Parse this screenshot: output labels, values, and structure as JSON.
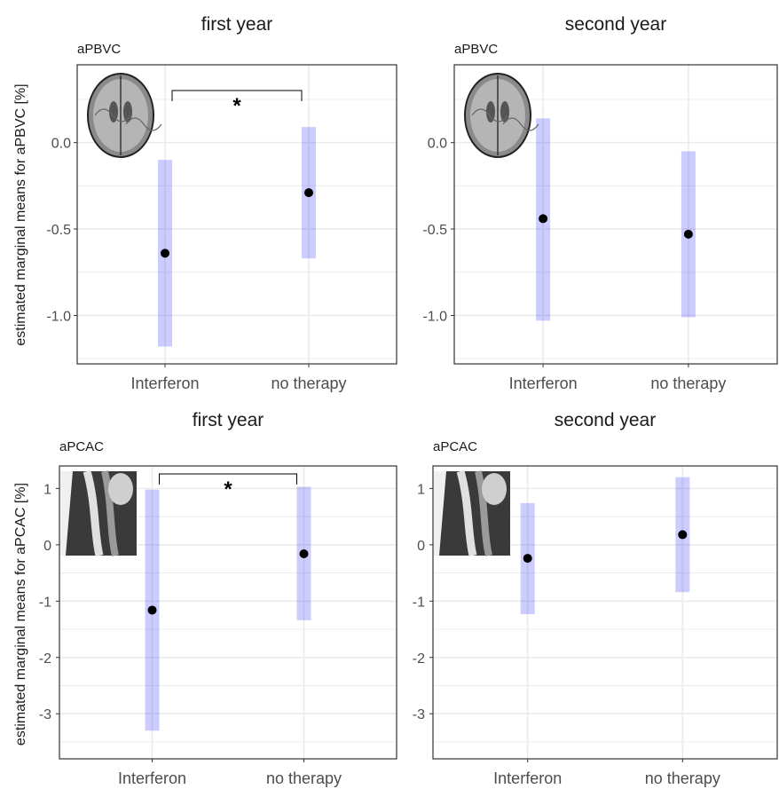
{
  "ylabels": {
    "top": "estimated marginal means for aPBVC [%]",
    "bottom": "estimated marginal means for aPCAC [%]"
  },
  "chart_data": [
    {
      "type": "scatter",
      "title": "first year",
      "subtitle": "aPBVC",
      "categories": [
        "Interferon",
        "no therapy"
      ],
      "series": [
        {
          "values": [
            -0.64,
            -0.29
          ],
          "lower": [
            -1.18,
            -0.67
          ],
          "upper": [
            -0.1,
            0.09
          ]
        }
      ],
      "ylim": [
        -1.28,
        0.45
      ],
      "yticks": [
        0.0,
        -0.5,
        -1.0
      ],
      "ytick_labels": [
        "0.0",
        "-0.5",
        "-1.0"
      ],
      "significance": "*",
      "inset": "brain-axial-mri-icon",
      "grid": true
    },
    {
      "type": "scatter",
      "title": "second year",
      "subtitle": "aPBVC",
      "categories": [
        "Interferon",
        "no therapy"
      ],
      "series": [
        {
          "values": [
            -0.44,
            -0.53
          ],
          "lower": [
            -1.03,
            -1.01
          ],
          "upper": [
            0.14,
            -0.05
          ]
        }
      ],
      "ylim": [
        -1.28,
        0.45
      ],
      "yticks": [
        0.0,
        -0.5,
        -1.0
      ],
      "ytick_labels": [
        "0.0",
        "-0.5",
        "-1.0"
      ],
      "significance": "",
      "inset": "brain-axial-mri-icon",
      "grid": true
    },
    {
      "type": "scatter",
      "title": "first year",
      "subtitle": "aPCAC",
      "categories": [
        "Interferon",
        "no therapy"
      ],
      "series": [
        {
          "values": [
            -1.16,
            -0.16
          ],
          "lower": [
            -3.3,
            -1.34
          ],
          "upper": [
            0.98,
            1.03
          ]
        }
      ],
      "ylim": [
        -3.8,
        1.4
      ],
      "yticks": [
        1,
        0,
        -1,
        -2,
        -3
      ],
      "ytick_labels": [
        "1",
        "0",
        "-1",
        "-2",
        "-3"
      ],
      "significance": "*",
      "inset": "cervical-spine-mri-icon",
      "grid": true
    },
    {
      "type": "scatter",
      "title": "second year",
      "subtitle": "aPCAC",
      "categories": [
        "Interferon",
        "no therapy"
      ],
      "series": [
        {
          "values": [
            -0.24,
            0.18
          ],
          "lower": [
            -1.23,
            -0.84
          ],
          "upper": [
            0.74,
            1.2
          ]
        }
      ],
      "ylim": [
        -3.8,
        1.4
      ],
      "yticks": [
        1,
        0,
        -1,
        -2,
        -3
      ],
      "ytick_labels": [
        "1",
        "0",
        "-1",
        "-2",
        "-3"
      ],
      "significance": "",
      "inset": "cervical-spine-mri-icon",
      "grid": true
    }
  ]
}
